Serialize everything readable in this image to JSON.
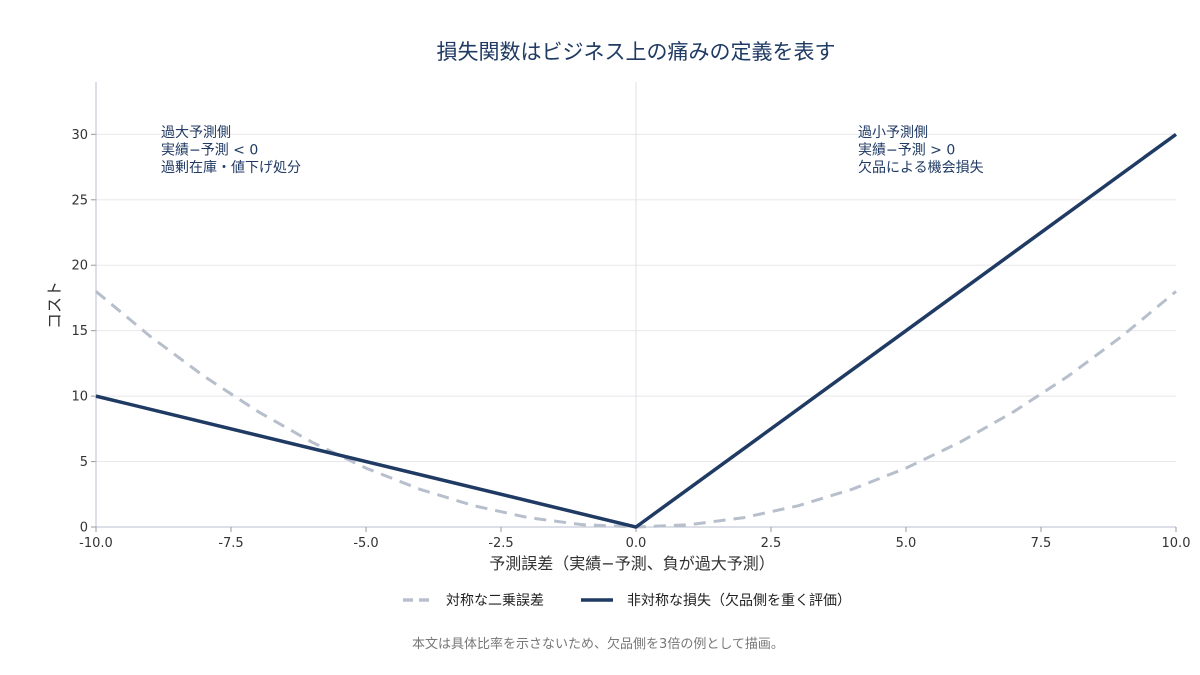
{
  "chart_data": {
    "type": "line",
    "title": "損失関数はビジネス上の痛みの定義を表す",
    "xlabel": "予測誤差（実績−予測、負が過大予測）",
    "ylabel": "コスト",
    "xlim": [
      -10,
      10
    ],
    "ylim": [
      0,
      34
    ],
    "x_ticks": [
      -10,
      -7.5,
      -5,
      -2.5,
      0,
      2.5,
      5,
      7.5,
      10
    ],
    "x_tick_labels": [
      "-10.0",
      "-7.5",
      "-5.0",
      "-2.5",
      "0.0",
      "2.5",
      "5.0",
      "7.5",
      "10.0"
    ],
    "y_ticks": [
      0,
      5,
      10,
      15,
      20,
      25,
      30
    ],
    "y_tick_labels": [
      "0",
      "5",
      "10",
      "15",
      "20",
      "25",
      "30"
    ],
    "grid": true,
    "legend_position": "bottom",
    "series": [
      {
        "name": "対称な二乗誤差",
        "style": "dashed",
        "color": "#b8bfcc",
        "x": [
          -10,
          -9,
          -8,
          -7,
          -6,
          -5,
          -4,
          -3,
          -2,
          -1,
          0,
          1,
          2,
          3,
          4,
          5,
          6,
          7,
          8,
          9,
          10
        ],
        "y": [
          18,
          14.58,
          11.52,
          8.82,
          6.48,
          4.5,
          2.88,
          1.62,
          0.72,
          0.18,
          0,
          0.18,
          0.72,
          1.62,
          2.88,
          4.5,
          6.48,
          8.82,
          11.52,
          14.58,
          18
        ]
      },
      {
        "name": "非対称な損失（欠品側を重く評価）",
        "style": "solid",
        "color": "#1f3a63",
        "x": [
          -10,
          0,
          10
        ],
        "y": [
          10,
          0,
          30
        ]
      }
    ],
    "annotations": [
      {
        "lines": [
          "過大予測側",
          "実績−予測 < 0",
          "過剰在庫・値下げ処分"
        ]
      },
      {
        "lines": [
          "過小予測側",
          "実績−予測 > 0",
          "欠品による機会損失"
        ]
      }
    ],
    "footnote": "本文は具体比率を示さないため、欠品側を3倍の例として描画。"
  }
}
